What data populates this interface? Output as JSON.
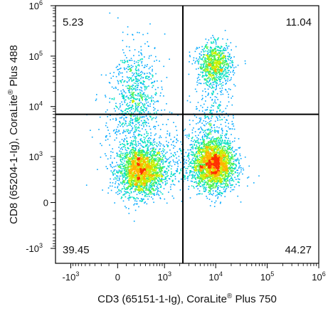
{
  "chart_data": {
    "type": "scatter",
    "subtype": "flow-cytometry-density-plot",
    "xlabel": "CD3 (65151-1-Ig), CoraLite",
    "xlabel_sup": "®",
    "xlabel_tail": " Plus 750",
    "ylabel": "CD8 (65204-1-Ig), CoraLite",
    "ylabel_sup": "®",
    "ylabel_tail": " Plus 488",
    "x_scale": "biexponential",
    "y_scale": "biexponential",
    "xlim": [
      -2000,
      1000000
    ],
    "ylim": [
      -2000,
      1000000
    ],
    "x_ticks": [
      {
        "value": -1000,
        "base": "-10",
        "exp": "3"
      },
      {
        "value": 0,
        "base": "0",
        "exp": ""
      },
      {
        "value": 1000,
        "base": "10",
        "exp": "3"
      },
      {
        "value": 10000,
        "base": "10",
        "exp": "4"
      },
      {
        "value": 100000,
        "base": "10",
        "exp": "5"
      },
      {
        "value": 1000000,
        "base": "10",
        "exp": "6"
      }
    ],
    "y_ticks": [
      {
        "value": -1000,
        "base": "-10",
        "exp": "3"
      },
      {
        "value": 0,
        "base": "0",
        "exp": ""
      },
      {
        "value": 1000,
        "base": "10",
        "exp": "3"
      },
      {
        "value": 10000,
        "base": "10",
        "exp": "4"
      },
      {
        "value": 100000,
        "base": "10",
        "exp": "5"
      },
      {
        "value": 1000000,
        "base": "10",
        "exp": "6"
      }
    ],
    "gate": {
      "x": 2300,
      "y": 7000
    },
    "quadrants": [
      {
        "position": "top-left",
        "value": "5.23"
      },
      {
        "position": "top-right",
        "value": "11.04"
      },
      {
        "position": "bottom-left",
        "value": "39.45"
      },
      {
        "position": "bottom-right",
        "value": "44.27"
      }
    ],
    "populations": [
      {
        "x": 300,
        "y": 500,
        "sx": 0.22,
        "sy": 0.24,
        "weight": 0.3
      },
      {
        "x": 9000,
        "y": 700,
        "sx": 0.2,
        "sy": 0.24,
        "weight": 0.34
      },
      {
        "x": 9500,
        "y": 70000,
        "sx": 0.16,
        "sy": 0.2,
        "weight": 0.12
      },
      {
        "x": 200,
        "y": 25000,
        "sx": 0.2,
        "sy": 0.45,
        "weight": 0.07
      },
      {
        "x": 200,
        "y": 5000,
        "sx": 0.3,
        "sy": 0.4,
        "weight": 0.06
      },
      {
        "x": 9000,
        "y": 6000,
        "sx": 0.2,
        "sy": 0.5,
        "weight": 0.05
      },
      {
        "x": 1500,
        "y": 800,
        "sx": 0.5,
        "sy": 0.3,
        "weight": 0.06
      }
    ],
    "density_colors": [
      "#1a1aff",
      "#00a8ff",
      "#00e0c0",
      "#4cf050",
      "#c8f000",
      "#ffb400",
      "#ff3000"
    ]
  }
}
